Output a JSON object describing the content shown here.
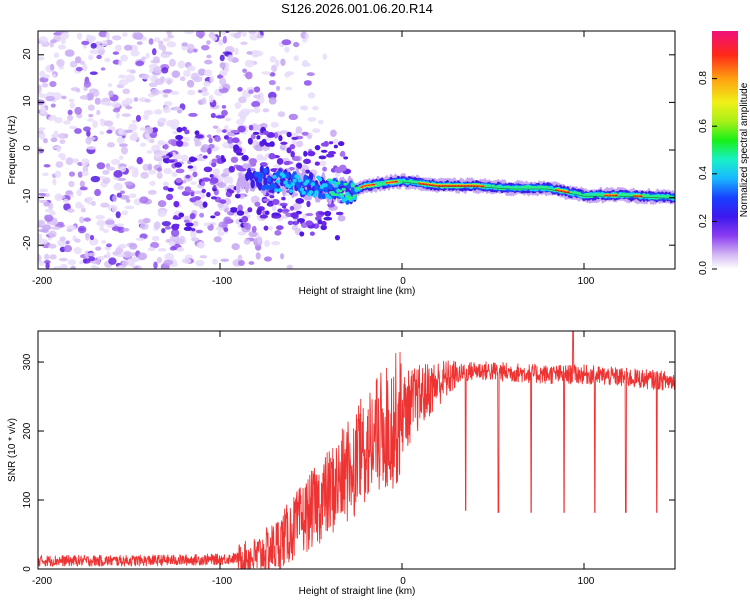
{
  "figure": {
    "title": "S126.2026.001.06.20.R14"
  },
  "chart_data": [
    {
      "type": "heatmap",
      "name": "spectrogram",
      "xlabel": "Height of straight line (km)",
      "ylabel": "Frequency (Hz)",
      "xlim": [
        -200,
        150
      ],
      "ylim": [
        -25,
        25
      ],
      "xticks": [
        -200,
        -100,
        0,
        100
      ],
      "xtick_labels": [
        "-200",
        "-100",
        "0",
        "100"
      ],
      "yticks": [
        20,
        10,
        0,
        -10,
        -20
      ],
      "ytick_labels": [
        "20",
        "10",
        "0",
        "-10",
        "-20"
      ],
      "colorbar": {
        "label": "Normalized spectral amplitude",
        "range": [
          0,
          1
        ],
        "ticks": [
          0.0,
          0.2,
          0.4,
          0.6,
          0.8
        ],
        "tick_labels": [
          "0.0",
          "0.2",
          "0.4",
          "0.6",
          "0.8"
        ]
      },
      "ridge": {
        "description_points_x": [
          -80,
          -60,
          -40,
          -30,
          -20,
          0,
          20,
          40,
          60,
          80,
          100,
          120,
          150
        ],
        "frequency_hz": [
          -6,
          -7,
          -8,
          -9,
          -7.5,
          -6.5,
          -7.5,
          -7.5,
          -8,
          -8,
          -9.5,
          -9.5,
          -10
        ]
      }
    },
    {
      "type": "line",
      "name": "snr",
      "xlabel": "Height of straight line (km)",
      "ylabel": "SNR (10 * v/v)",
      "xlim": [
        -200,
        150
      ],
      "ylim": [
        0,
        345
      ],
      "xticks": [
        -200,
        -100,
        0,
        100
      ],
      "xtick_labels": [
        "-200",
        "-100",
        "0",
        "100"
      ],
      "yticks": [
        0,
        100,
        200,
        300
      ],
      "ytick_labels": [
        "0",
        "100",
        "200",
        "300"
      ],
      "series": [
        {
          "name": "SNR",
          "color": "#ee3333",
          "x": [
            -200,
            -150,
            -120,
            -100,
            -80,
            -70,
            -60,
            -50,
            -40,
            -30,
            -20,
            -10,
            0,
            10,
            20,
            30,
            40,
            60,
            80,
            100,
            120,
            150
          ],
          "y": [
            12,
            12,
            13,
            14,
            18,
            32,
            58,
            85,
            110,
            140,
            175,
            200,
            225,
            250,
            270,
            282,
            288,
            285,
            282,
            282,
            278,
            272
          ]
        }
      ],
      "dropouts_x": [
        35,
        53,
        71,
        89,
        106,
        123,
        140
      ],
      "dropouts_y": [
        85,
        82,
        82,
        82,
        82,
        82,
        82
      ],
      "spike": {
        "x": 94,
        "y": 345
      }
    }
  ]
}
